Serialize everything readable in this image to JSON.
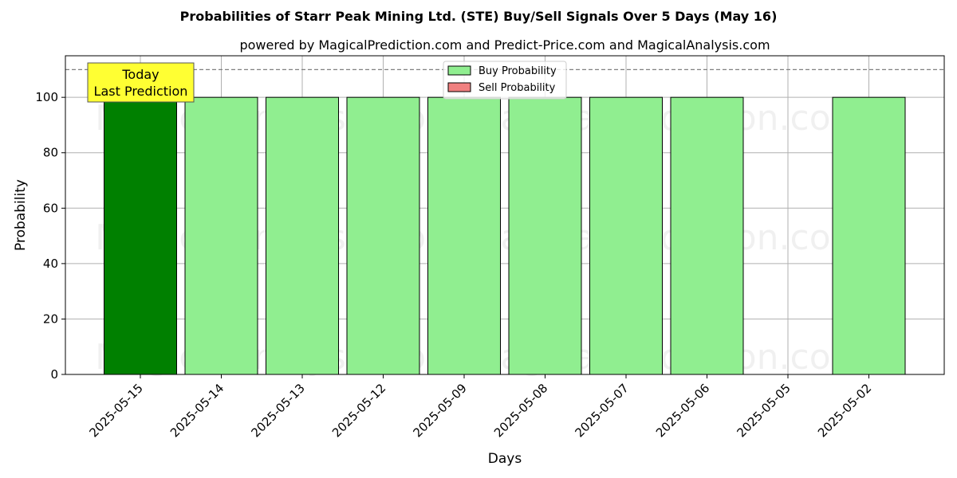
{
  "chart_data": {
    "type": "bar",
    "title": "Probabilities of Starr Peak Mining Ltd. (STE) Buy/Sell Signals Over 5 Days (May 16)",
    "subtitle": "powered by MagicalPrediction.com and Predict-Price.com and MagicalAnalysis.com",
    "xlabel": "Days",
    "ylabel": "Probability",
    "ylim": [
      0,
      115
    ],
    "yticks": [
      0,
      20,
      40,
      60,
      80,
      100
    ],
    "grid": true,
    "legend_placement": "top-center",
    "threshold_line": 110,
    "categories": [
      "2025-05-15",
      "2025-05-14",
      "2025-05-13",
      "2025-05-12",
      "2025-05-09",
      "2025-05-08",
      "2025-05-07",
      "2025-05-06",
      "2025-05-05",
      "2025-05-02"
    ],
    "series": [
      {
        "name": "Buy Probability",
        "color": "#90ee90",
        "highlight_color": "#008000",
        "values": [
          100,
          100,
          100,
          100,
          100,
          100,
          100,
          100,
          0,
          100
        ]
      },
      {
        "name": "Sell Probability",
        "color": "#f08080",
        "values": [
          0,
          0,
          0,
          0,
          0,
          0,
          0,
          0,
          0,
          0
        ]
      }
    ],
    "annotation": {
      "line1": "Today",
      "line2": "Last Prediction",
      "color": "#ffff33"
    },
    "watermarks": [
      "MagicalAnalysis.com",
      "MagicalPrediction.com"
    ]
  }
}
